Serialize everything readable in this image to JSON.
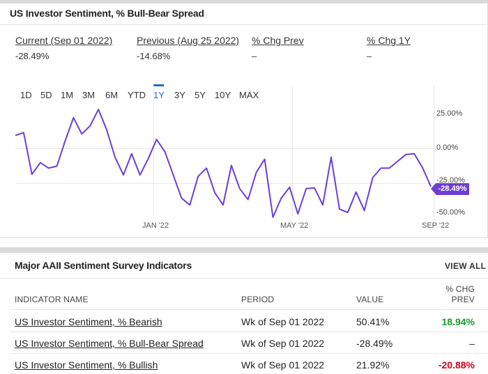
{
  "card1": {
    "title": "US Investor Sentiment, % Bull-Bear Spread",
    "stats": [
      {
        "label": "Current (Sep 01 2022)",
        "value": "-28.49%"
      },
      {
        "label": "Previous (Aug 25 2022)",
        "value": "-14.68%"
      },
      {
        "label": "% Chg Prev",
        "value": "–"
      },
      {
        "label": "% Chg 1Y",
        "value": "–"
      }
    ],
    "ranges": [
      "1D",
      "5D",
      "1M",
      "3M",
      "6M",
      "YTD",
      "1Y",
      "3Y",
      "5Y",
      "10Y",
      "MAX"
    ],
    "active_range": "1Y",
    "value_flag": "-28.49%"
  },
  "chart_data": {
    "type": "line",
    "series": [
      {
        "values": [
          9.0,
          11.0,
          -19.5,
          -11.0,
          -15.0,
          -13.5,
          5.0,
          22.0,
          10.0,
          16.0,
          28.0,
          13.0,
          -7.0,
          -20.0,
          -4.5,
          -20.0,
          -8.0,
          6.0,
          -3.0,
          -20.0,
          -37.0,
          -42.0,
          -21.0,
          -15.0,
          -33.0,
          -42.0,
          -13.0,
          -30.0,
          -38.0,
          -18.0,
          -8.5,
          -51.0,
          -37.0,
          -29.0,
          -48.5,
          -30.0,
          -29.5,
          -42.0,
          -7.0,
          -45.0,
          -47.5,
          -32.5,
          -46.0,
          -22.0,
          -15.0,
          -15.0,
          -10.0,
          -5.0,
          -4.5,
          -14.68,
          -28.49
        ]
      }
    ],
    "x_tick_labels": [
      "JAN '22",
      "MAY '22",
      "SEP '22"
    ],
    "y_tick_labels": [
      "25.00%",
      "0.00%",
      "-25.00%",
      "-50.00%"
    ],
    "ylim": [
      -50,
      25
    ],
    "grid": true,
    "line_color": "#6a3de0"
  },
  "card2": {
    "title": "Major AAII Sentiment Survey Indicators",
    "view_all": "VIEW ALL",
    "headers": {
      "name": "INDICATOR NAME",
      "period": "PERIOD",
      "value": "VALUE",
      "chg_line1": "% CHG",
      "chg_line2": "PREV"
    },
    "rows": [
      {
        "name": "US Investor Sentiment, % Bearish",
        "period": "Wk of Sep 01 2022",
        "value": "50.41%",
        "chg": "18.94%",
        "chg_tone": "pos"
      },
      {
        "name": "US Investor Sentiment, % Bull-Bear Spread",
        "period": "Wk of Sep 01 2022",
        "value": "-28.49%",
        "chg": "–",
        "chg_tone": "neutral"
      },
      {
        "name": "US Investor Sentiment, % Bullish",
        "period": "Wk of Sep 01 2022",
        "value": "21.92%",
        "chg": "-20.88%",
        "chg_tone": "neg"
      }
    ]
  },
  "colors": {
    "accent": "#1f6fc5",
    "series": "#6a3de0",
    "positive": "#1a9a2c",
    "negative": "#d0021b"
  }
}
